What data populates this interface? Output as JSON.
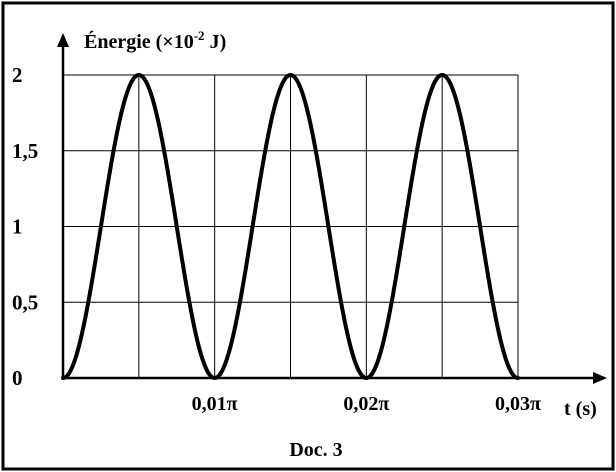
{
  "chart_data": {
    "type": "line",
    "title": "",
    "ylabel": "Énergie (×10",
    "ylabel_exponent": "-2",
    "ylabel_unit": " J)",
    "xlabel": "t (s)",
    "caption": "Doc. 3",
    "y_ticks": [
      "0",
      "0,5",
      "1",
      "1,5",
      "2"
    ],
    "y_tick_values": [
      0,
      0.5,
      1,
      1.5,
      2
    ],
    "x_ticks": [
      "0,01π",
      "0,02π",
      "0,03π"
    ],
    "x_tick_values_over_pi": [
      0.01,
      0.02,
      0.03
    ],
    "xlim_over_pi": [
      0,
      0.03
    ],
    "ylim": [
      0,
      2
    ],
    "grid": true,
    "series": [
      {
        "x_over_pi": [
          0,
          0.00125,
          0.0025,
          0.00375,
          0.005,
          0.00625,
          0.0075,
          0.00875,
          0.01,
          0.01125,
          0.0125,
          0.01375,
          0.015,
          0.01625,
          0.0175,
          0.01875,
          0.02,
          0.02125,
          0.0225,
          0.02375,
          0.025,
          0.02625,
          0.0275,
          0.02875,
          0.03
        ],
        "values": [
          0,
          0.29,
          1.0,
          1.71,
          2.0,
          1.71,
          1.0,
          0.29,
          0,
          0.29,
          1.0,
          1.71,
          2.0,
          1.71,
          1.0,
          0.29,
          0,
          0.29,
          1.0,
          1.71,
          2.0,
          1.71,
          1.0,
          0.29,
          0
        ],
        "model": "2 * sin^2(100 * t) with t in seconds",
        "color": "#000000"
      }
    ]
  }
}
